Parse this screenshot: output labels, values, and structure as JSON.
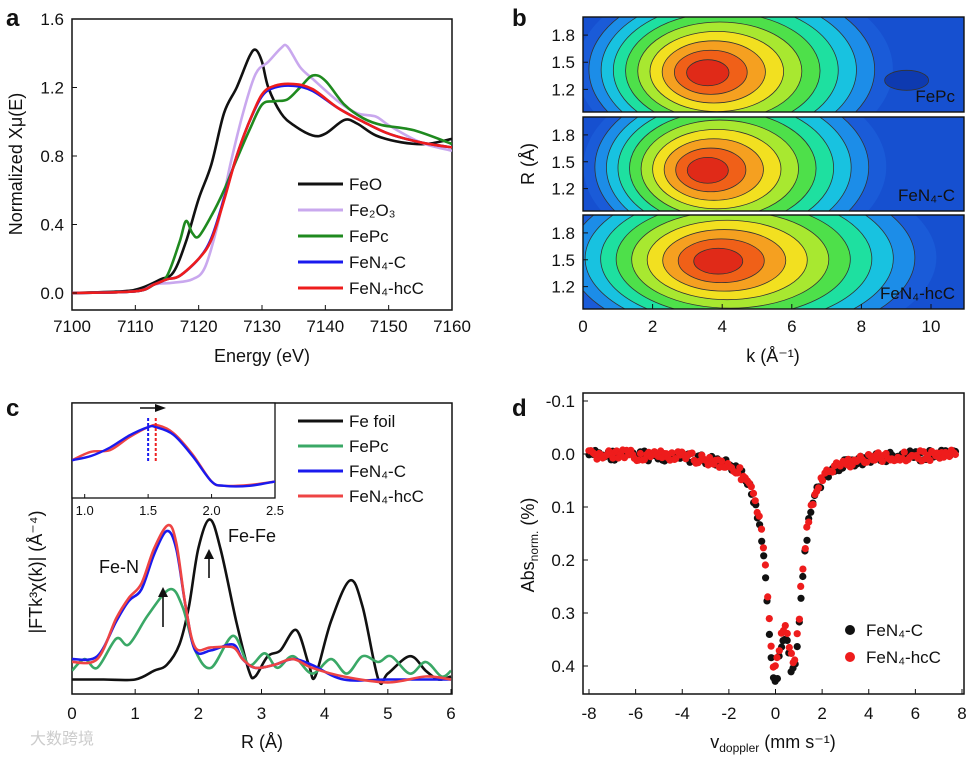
{
  "panel_labels": [
    "a",
    "b",
    "c",
    "d"
  ],
  "watermark": "大数跨境",
  "chart_data": [
    {
      "id": "a",
      "type": "line",
      "xlabel": "Energy (eV)",
      "ylabel": "Normalized Xμ(E)",
      "xlim": [
        7100,
        7160
      ],
      "ylim": [
        -0.1,
        1.6
      ],
      "xticks": [
        "7100",
        "7110",
        "7120",
        "7130",
        "7140",
        "7150",
        "7160"
      ],
      "yticks": [
        "0.0",
        "0.4",
        "0.8",
        "1.2",
        "1.6"
      ],
      "legend_position": "bottom-right",
      "series": [
        {
          "name": "FeO",
          "color": "#111111",
          "points": [
            [
              7100,
              0
            ],
            [
              7108,
              0.01
            ],
            [
              7111,
              0.03
            ],
            [
              7114,
              0.08
            ],
            [
              7116,
              0.12
            ],
            [
              7118,
              0.3
            ],
            [
              7120,
              0.55
            ],
            [
              7122,
              0.75
            ],
            [
              7124,
              1.05
            ],
            [
              7126,
              1.2
            ],
            [
              7128,
              1.38
            ],
            [
              7129,
              1.42
            ],
            [
              7130,
              1.35
            ],
            [
              7131,
              1.2
            ],
            [
              7133,
              1.05
            ],
            [
              7135,
              0.98
            ],
            [
              7138,
              0.92
            ],
            [
              7140,
              0.93
            ],
            [
              7143,
              1.01
            ],
            [
              7145,
              0.99
            ],
            [
              7148,
              0.92
            ],
            [
              7152,
              0.88
            ],
            [
              7156,
              0.87
            ],
            [
              7160,
              0.9
            ]
          ]
        },
        {
          "name": "Fe₂O₃",
          "color": "#c9a8ee",
          "points": [
            [
              7100,
              0
            ],
            [
              7110,
              0.01
            ],
            [
              7113,
              0.05
            ],
            [
              7116,
              0.06
            ],
            [
              7119,
              0.08
            ],
            [
              7121,
              0.15
            ],
            [
              7123,
              0.4
            ],
            [
              7125,
              0.75
            ],
            [
              7127,
              1.05
            ],
            [
              7129,
              1.28
            ],
            [
              7131,
              1.35
            ],
            [
              7133,
              1.43
            ],
            [
              7134,
              1.44
            ],
            [
              7136,
              1.32
            ],
            [
              7138,
              1.25
            ],
            [
              7142,
              1.12
            ],
            [
              7145,
              1.05
            ],
            [
              7148,
              1.03
            ],
            [
              7150,
              0.98
            ],
            [
              7155,
              0.88
            ],
            [
              7160,
              0.83
            ]
          ]
        },
        {
          "name": "FePc",
          "color": "#1f8a1f",
          "points": [
            [
              7100,
              0
            ],
            [
              7110,
              0.01
            ],
            [
              7113,
              0.05
            ],
            [
              7115,
              0.1
            ],
            [
              7117,
              0.3
            ],
            [
              7118,
              0.42
            ],
            [
              7119,
              0.35
            ],
            [
              7120,
              0.33
            ],
            [
              7122,
              0.45
            ],
            [
              7124,
              0.6
            ],
            [
              7126,
              0.78
            ],
            [
              7128,
              0.95
            ],
            [
              7130,
              1.1
            ],
            [
              7132,
              1.12
            ],
            [
              7134,
              1.13
            ],
            [
              7136,
              1.2
            ],
            [
              7138,
              1.27
            ],
            [
              7140,
              1.24
            ],
            [
              7143,
              1.1
            ],
            [
              7146,
              1.02
            ],
            [
              7149,
              0.98
            ],
            [
              7154,
              0.95
            ],
            [
              7160,
              0.87
            ]
          ]
        },
        {
          "name": "FeN₄-C",
          "color": "#1a1aee",
          "points": [
            [
              7100,
              0
            ],
            [
              7110,
              0.01
            ],
            [
              7113,
              0.05
            ],
            [
              7115,
              0.08
            ],
            [
              7117,
              0.1
            ],
            [
              7120,
              0.2
            ],
            [
              7122,
              0.32
            ],
            [
              7124,
              0.55
            ],
            [
              7126,
              0.8
            ],
            [
              7128,
              1.0
            ],
            [
              7130,
              1.15
            ],
            [
              7132,
              1.2
            ],
            [
              7135,
              1.21
            ],
            [
              7138,
              1.18
            ],
            [
              7142,
              1.08
            ],
            [
              7146,
              1.0
            ],
            [
              7150,
              0.93
            ],
            [
              7155,
              0.88
            ],
            [
              7160,
              0.85
            ]
          ]
        },
        {
          "name": "FeN₄-hcC",
          "color": "#ee1c1c",
          "points": [
            [
              7100,
              0
            ],
            [
              7110,
              0.01
            ],
            [
              7113,
              0.05
            ],
            [
              7115,
              0.08
            ],
            [
              7117,
              0.1
            ],
            [
              7120,
              0.2
            ],
            [
              7122,
              0.31
            ],
            [
              7124,
              0.54
            ],
            [
              7126,
              0.8
            ],
            [
              7128,
              1.0
            ],
            [
              7130,
              1.16
            ],
            [
              7132,
              1.21
            ],
            [
              7135,
              1.22
            ],
            [
              7138,
              1.19
            ],
            [
              7142,
              1.08
            ],
            [
              7146,
              1.0
            ],
            [
              7150,
              0.93
            ],
            [
              7155,
              0.88
            ],
            [
              7160,
              0.85
            ]
          ]
        }
      ]
    },
    {
      "id": "b",
      "type": "heatmap",
      "xlabel": "k (Å⁻¹)",
      "ylabel": "R (Å)",
      "xlim": [
        0,
        11
      ],
      "ylim": [
        0.95,
        2.0
      ],
      "xticks": [
        "0",
        "2",
        "4",
        "6",
        "8",
        "10"
      ],
      "yticks": [
        "1.2",
        "1.5",
        "1.8"
      ],
      "maps": [
        {
          "name": "FePc",
          "peak_k": 3.5,
          "peak_R": 1.38,
          "spread_k": 2.3
        },
        {
          "name": "FeN₄-C",
          "peak_k": 3.5,
          "peak_R": 1.4,
          "spread_k": 2.2
        },
        {
          "name": "FeN₄-hcC",
          "peak_k": 3.8,
          "peak_R": 1.48,
          "spread_k": 2.8
        }
      ]
    },
    {
      "id": "c",
      "type": "line",
      "xlabel": "R (Å)",
      "ylabel": "|FTk³χ(k)| (Å⁻⁴)",
      "xlim": [
        0,
        6
      ],
      "ylim": [
        0,
        1
      ],
      "xticks": [
        "0",
        "1",
        "2",
        "3",
        "4",
        "5",
        "6"
      ],
      "legend_position": "top-right",
      "annotations": [
        "Fe-N",
        "Fe-Fe"
      ],
      "series": [
        {
          "name": "Fe foil",
          "color": "#111111",
          "points": [
            [
              0,
              0.05
            ],
            [
              0.5,
              0.05
            ],
            [
              1,
              0.05
            ],
            [
              1.3,
              0.08
            ],
            [
              1.5,
              0.1
            ],
            [
              1.7,
              0.17
            ],
            [
              1.85,
              0.3
            ],
            [
              2,
              0.5
            ],
            [
              2.18,
              0.6
            ],
            [
              2.35,
              0.5
            ],
            [
              2.6,
              0.25
            ],
            [
              2.8,
              0.08
            ],
            [
              2.9,
              0.06
            ],
            [
              3.1,
              0.13
            ],
            [
              3.3,
              0.15
            ],
            [
              3.55,
              0.22
            ],
            [
              3.75,
              0.1
            ],
            [
              3.85,
              0.06
            ],
            [
              4.1,
              0.25
            ],
            [
              4.4,
              0.39
            ],
            [
              4.6,
              0.3
            ],
            [
              4.85,
              0.05
            ],
            [
              5,
              0.07
            ],
            [
              5.35,
              0.13
            ],
            [
              5.6,
              0.08
            ],
            [
              5.8,
              0.05
            ],
            [
              6,
              0.06
            ]
          ]
        },
        {
          "name": "FePc",
          "color": "#3aa866",
          "points": [
            [
              0,
              0.08
            ],
            [
              0.2,
              0.12
            ],
            [
              0.4,
              0.09
            ],
            [
              0.7,
              0.19
            ],
            [
              0.9,
              0.17
            ],
            [
              1.2,
              0.27
            ],
            [
              1.55,
              0.36
            ],
            [
              1.75,
              0.3
            ],
            [
              1.95,
              0.15
            ],
            [
              2.2,
              0.09
            ],
            [
              2.55,
              0.2
            ],
            [
              2.8,
              0.1
            ],
            [
              3.05,
              0.14
            ],
            [
              3.25,
              0.09
            ],
            [
              3.5,
              0.13
            ],
            [
              3.8,
              0.07
            ],
            [
              4.1,
              0.12
            ],
            [
              4.35,
              0.07
            ],
            [
              4.6,
              0.13
            ],
            [
              4.85,
              0.11
            ],
            [
              5.05,
              0.13
            ],
            [
              5.35,
              0.07
            ],
            [
              5.6,
              0.11
            ],
            [
              5.85,
              0.06
            ],
            [
              6,
              0.08
            ]
          ]
        },
        {
          "name": "FeN₄-C",
          "color": "#1a1aee",
          "points": [
            [
              0,
              0.12
            ],
            [
              0.4,
              0.13
            ],
            [
              0.7,
              0.25
            ],
            [
              0.9,
              0.32
            ],
            [
              1.1,
              0.36
            ],
            [
              1.3,
              0.48
            ],
            [
              1.5,
              0.56
            ],
            [
              1.65,
              0.5
            ],
            [
              1.8,
              0.3
            ],
            [
              1.95,
              0.15
            ],
            [
              2.2,
              0.15
            ],
            [
              2.55,
              0.17
            ],
            [
              2.7,
              0.12
            ],
            [
              2.9,
              0.09
            ],
            [
              3.2,
              0.1
            ],
            [
              3.5,
              0.12
            ],
            [
              3.8,
              0.1
            ],
            [
              4.3,
              0.05
            ],
            [
              5,
              0.05
            ],
            [
              5.6,
              0.05
            ],
            [
              6,
              0.05
            ]
          ]
        },
        {
          "name": "FeN₄-hcC",
          "color": "#ee4444",
          "points": [
            [
              0,
              0.11
            ],
            [
              0.4,
              0.12
            ],
            [
              0.7,
              0.26
            ],
            [
              0.9,
              0.33
            ],
            [
              1.1,
              0.38
            ],
            [
              1.3,
              0.5
            ],
            [
              1.52,
              0.58
            ],
            [
              1.65,
              0.52
            ],
            [
              1.8,
              0.3
            ],
            [
              1.95,
              0.16
            ],
            [
              2.2,
              0.16
            ],
            [
              2.55,
              0.16
            ],
            [
              2.7,
              0.12
            ],
            [
              2.9,
              0.09
            ],
            [
              3.2,
              0.1
            ],
            [
              3.5,
              0.12
            ],
            [
              3.8,
              0.09
            ],
            [
              4.3,
              0.06
            ],
            [
              5,
              0.04
            ],
            [
              5.6,
              0.06
            ],
            [
              6,
              0.05
            ]
          ]
        }
      ],
      "inset": {
        "xlim": [
          0.9,
          2.5
        ],
        "xticks": [
          "1.0",
          "1.5",
          "2.0",
          "2.5"
        ],
        "peak_FeN4_C": 1.5,
        "peak_FeN4_hcC": 1.56,
        "series": [
          {
            "name": "FeN₄-hcC",
            "color": "#ee4444",
            "points": [
              [
                0.9,
                0.35
              ],
              [
                1.05,
                0.45
              ],
              [
                1.2,
                0.47
              ],
              [
                1.35,
                0.62
              ],
              [
                1.5,
                0.74
              ],
              [
                1.58,
                0.76
              ],
              [
                1.7,
                0.67
              ],
              [
                1.85,
                0.42
              ],
              [
                2.0,
                0.1
              ],
              [
                2.1,
                0.05
              ],
              [
                2.3,
                0.06
              ],
              [
                2.5,
                0.1
              ]
            ]
          },
          {
            "name": "FeN₄-C",
            "color": "#1a1aee",
            "points": [
              [
                0.9,
                0.35
              ],
              [
                1.05,
                0.4
              ],
              [
                1.2,
                0.5
              ],
              [
                1.35,
                0.64
              ],
              [
                1.5,
                0.74
              ],
              [
                1.56,
                0.74
              ],
              [
                1.7,
                0.65
              ],
              [
                1.85,
                0.4
              ],
              [
                2.0,
                0.1
              ],
              [
                2.1,
                0.05
              ],
              [
                2.3,
                0.05
              ],
              [
                2.5,
                0.1
              ]
            ]
          }
        ]
      }
    },
    {
      "id": "d",
      "type": "scatter",
      "xlabel_main": "v",
      "xlabel_sub": "doppler",
      "xlabel_unit": " (mm s⁻¹)",
      "ylabel_main": "Abs",
      "ylabel_sub": "norm.",
      "ylabel_unit": " (%)",
      "xlim": [
        -8,
        8
      ],
      "ylim": [
        -0.1,
        0.45
      ],
      "y_inverted": true,
      "xticks": [
        "-8",
        "-6",
        "-4",
        "-2",
        "0",
        "2",
        "4",
        "6",
        "8"
      ],
      "yticks": [
        "-0.1",
        "0.0",
        "0.1",
        "0.2",
        "0.3",
        "0.4"
      ],
      "legend_position": "bottom-right",
      "series": [
        {
          "name": "FeN₄-C",
          "color": "#111111",
          "doublet_centers": [
            -0.05,
            0.8
          ],
          "depths": [
            0.36,
            0.34
          ]
        },
        {
          "name": "FeN₄-hcC",
          "color": "#ee1c1c",
          "doublet_centers": [
            -0.05,
            0.8
          ],
          "depths": [
            0.34,
            0.32
          ]
        }
      ]
    }
  ]
}
